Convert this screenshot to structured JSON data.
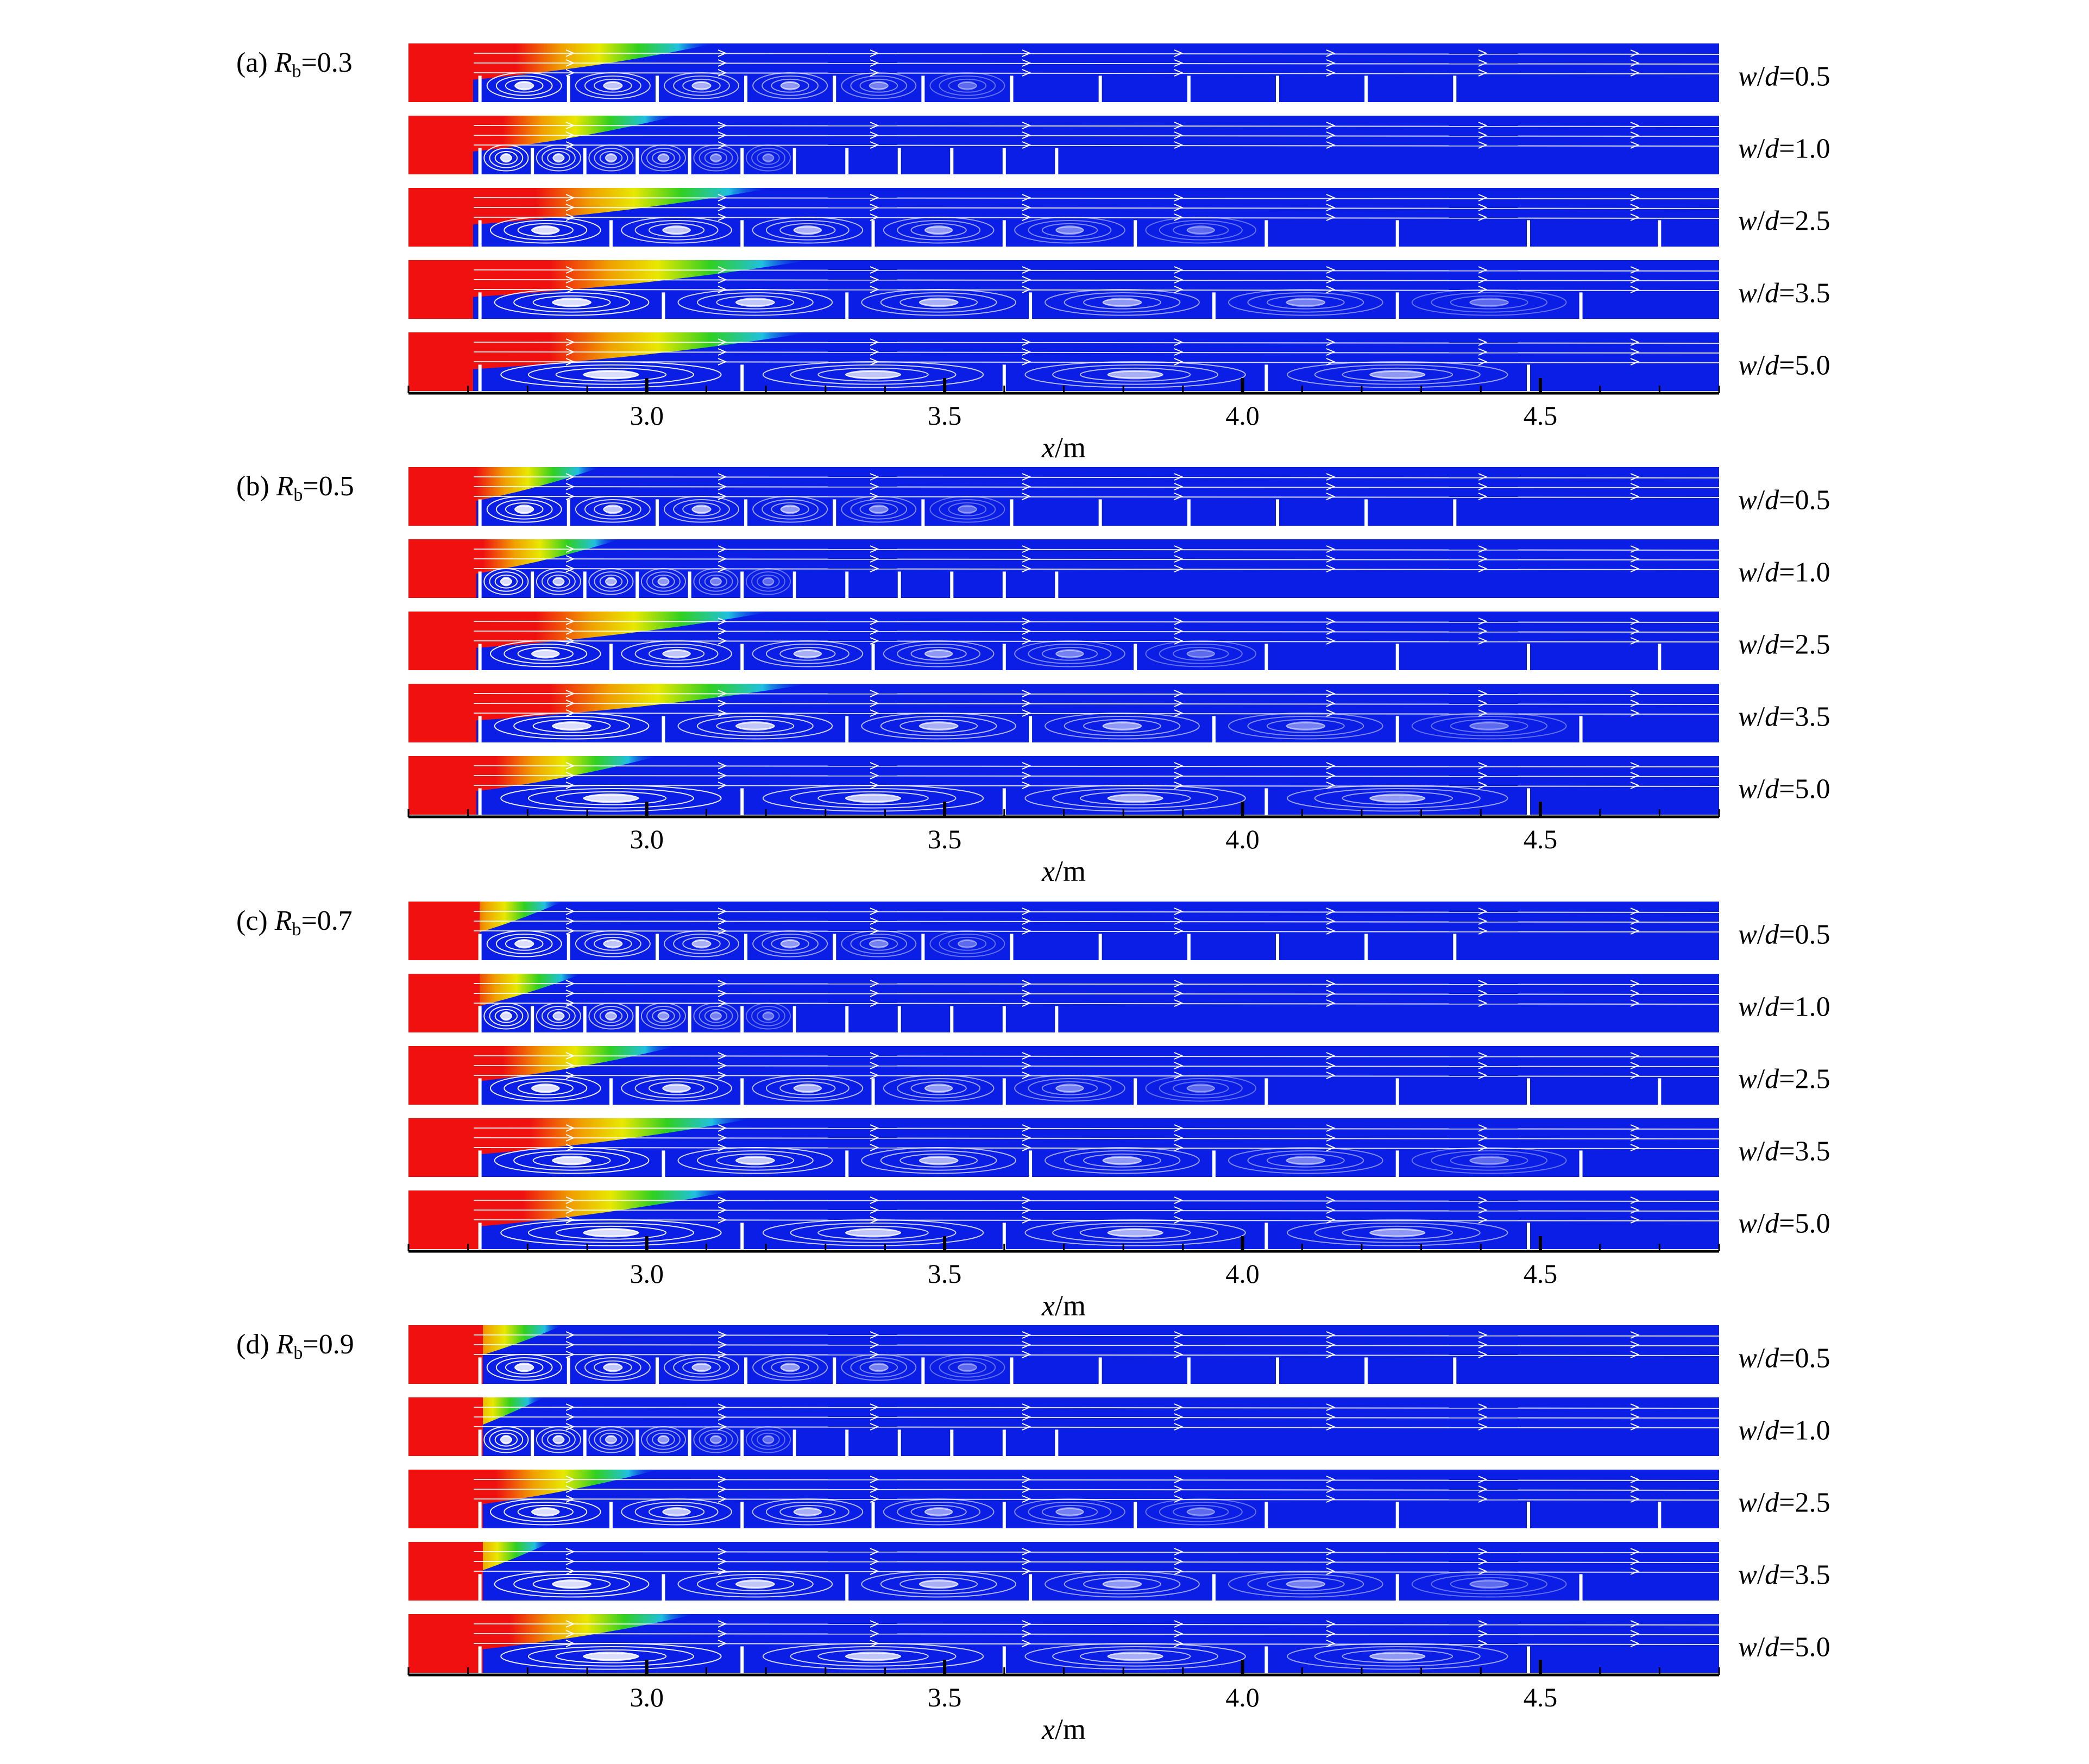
{
  "chart_data": {
    "type": "heatmap",
    "description_units": "streamline / concentration contour panels",
    "x_axis": {
      "label_italic": "x",
      "label_rest": "/m",
      "range": [
        2.6,
        4.8
      ],
      "major_ticks": [
        3.0,
        3.5,
        4.0,
        4.5
      ],
      "tick_labels": [
        "3.0",
        "3.5",
        "4.0",
        "4.5"
      ],
      "minor_tick_step": 0.1
    },
    "colors": {
      "background": "#0a1ee6",
      "source": "#f01010",
      "streamline": "#ffffff",
      "gradient": [
        "#f01010",
        "#f0a000",
        "#e8e800",
        "#30d020",
        "#20c0e0",
        "#0a1ee6"
      ]
    },
    "rows": [
      {
        "wd_label": "w/d=0.5",
        "wd": 0.5
      },
      {
        "wd_label": "w/d=1.0",
        "wd": 1.0
      },
      {
        "wd_label": "w/d=2.5",
        "wd": 2.5
      },
      {
        "wd_label": "w/d=3.5",
        "wd": 3.5
      },
      {
        "wd_label": "w/d=5.0",
        "wd": 5.0
      }
    ],
    "panels": [
      {
        "label_prefix": "(a) ",
        "label_var": "R",
        "label_sub": "b",
        "label_value": "=0.3",
        "Rb": 0.3,
        "plume_reach": [
          0.55,
          0.45,
          0.7,
          0.8,
          0.8
        ]
      },
      {
        "label_prefix": "(b) ",
        "label_var": "R",
        "label_sub": "b",
        "label_value": "=0.5",
        "Rb": 0.5,
        "plume_reach": [
          0.25,
          0.3,
          0.7,
          0.8,
          0.4
        ]
      },
      {
        "label_prefix": "(c) ",
        "label_var": "R",
        "label_sub": "b",
        "label_value": "=0.7",
        "Rb": 0.7,
        "plume_reach": [
          0.15,
          0.2,
          0.45,
          0.65,
          0.6
        ]
      },
      {
        "label_prefix": "(d) ",
        "label_var": "R",
        "label_sub": "b",
        "label_value": "=0.9",
        "Rb": 0.9,
        "plume_reach": [
          0.15,
          0.1,
          0.4,
          0.12,
          0.5
        ]
      }
    ]
  }
}
